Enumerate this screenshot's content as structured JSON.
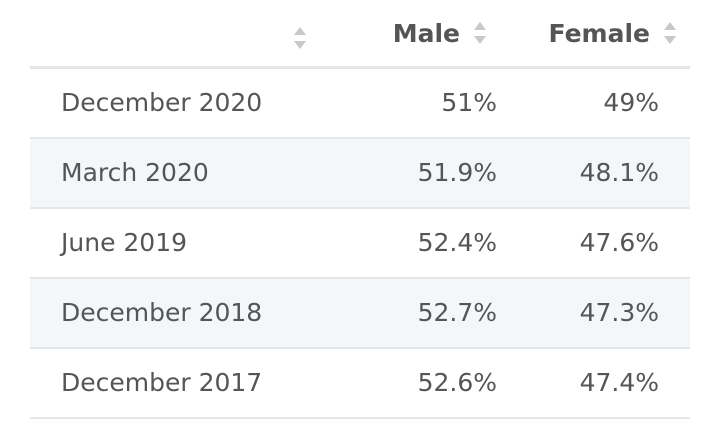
{
  "table": {
    "columns": [
      {
        "label": "",
        "sort_icon": "sort-up-down-icon"
      },
      {
        "label": "Male",
        "sort_icon": "sort-up-down-icon"
      },
      {
        "label": "Female",
        "sort_icon": "sort-up-down-icon"
      }
    ],
    "rows": [
      {
        "period": "December 2020",
        "male": "51%",
        "female": "49%"
      },
      {
        "period": "March 2020",
        "male": "51.9%",
        "female": "48.1%"
      },
      {
        "period": "June 2019",
        "male": "52.4%",
        "female": "47.6%"
      },
      {
        "period": "December 2018",
        "male": "52.7%",
        "female": "47.3%"
      },
      {
        "period": "December 2017",
        "male": "52.6%",
        "female": "47.4%"
      }
    ]
  },
  "colors": {
    "text": "#555555",
    "row_alt": "#f4f7fa",
    "divider": "#e3e7ea",
    "sort_icon": "#c8c8c8"
  }
}
